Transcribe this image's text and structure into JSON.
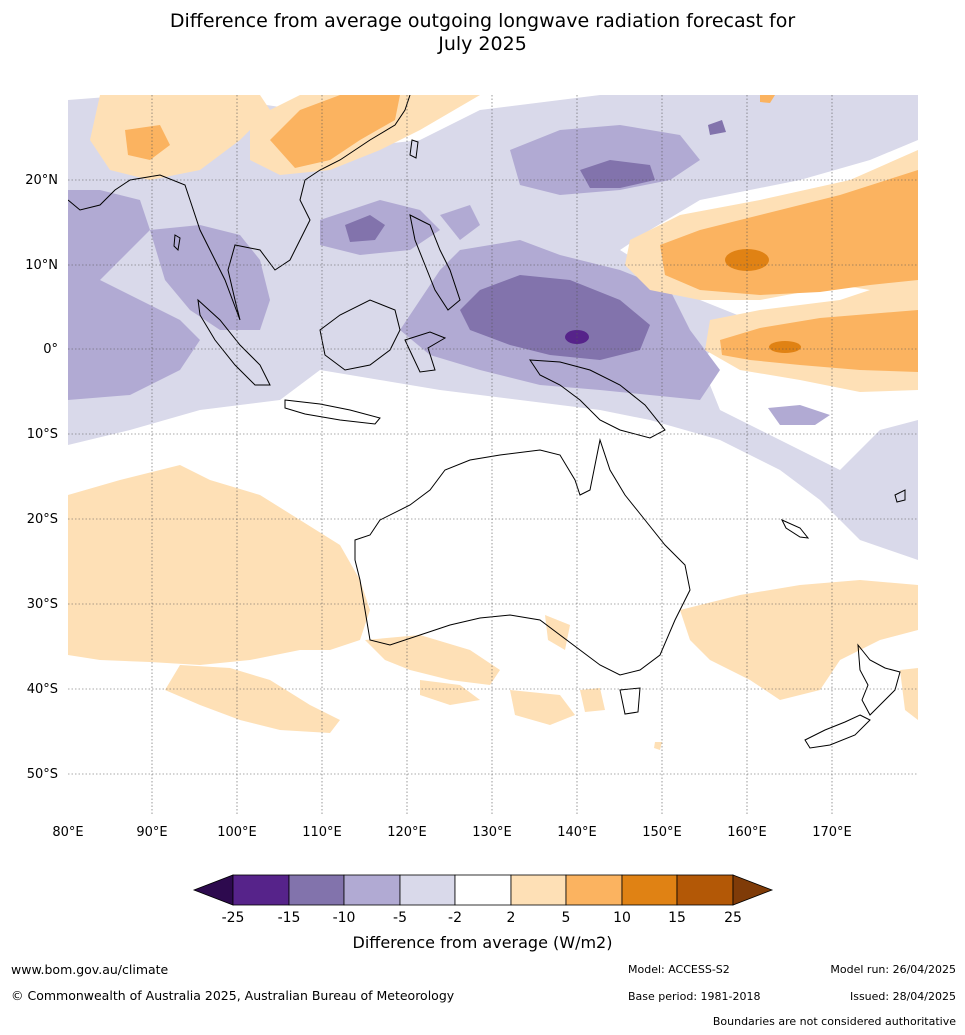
{
  "title": {
    "line1": "Difference from average outgoing longwave radiation forecast for",
    "line2": "July 2025"
  },
  "map": {
    "lon_labels": [
      "80°E",
      "90°E",
      "100°E",
      "110°E",
      "120°E",
      "130°E",
      "140°E",
      "150°E",
      "160°E",
      "170°E"
    ],
    "lat_labels": [
      "20°N",
      "10°N",
      "0°",
      "10°S",
      "20°S",
      "30°S",
      "40°S",
      "50°S"
    ]
  },
  "colorbar": {
    "ticks": [
      "-25",
      "-15",
      "-10",
      "-5",
      "-2",
      "2",
      "5",
      "10",
      "15",
      "25"
    ],
    "label": "Difference from average (W/m2)",
    "colors": [
      "#2d0a4e",
      "#56238a",
      "#8273ac",
      "#b1aad3",
      "#d9d9ea",
      "#ffffff",
      "#fee0b6",
      "#fbb360",
      "#e08214",
      "#b35806",
      "#7f3b08"
    ]
  },
  "footer": {
    "website": "www.bom.gov.au/climate",
    "copyright": "© Commonwealth of Australia 2025, Australian Bureau of Meteorology",
    "model": "Model: ACCESS-S2",
    "base_period": "Base period: 1981-2018",
    "model_run": "Model run: 26/04/2025",
    "issued": "Issued: 28/04/2025",
    "disclaimer": "Boundaries are not considered authoritative"
  }
}
